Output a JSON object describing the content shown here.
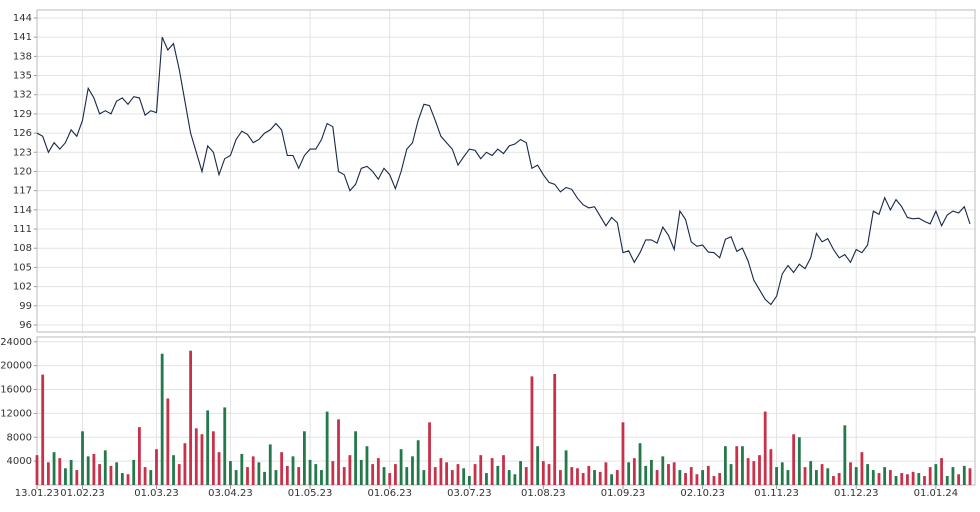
{
  "chart_data": [
    {
      "type": "line",
      "series": [
        {
          "color": "#17284a",
          "values": [
            126,
            125.5,
            123,
            124.5,
            123.5,
            124.5,
            126.5,
            125.5,
            128,
            133,
            131.5,
            129,
            129.5,
            129,
            131,
            131.5,
            130.5,
            131.7,
            131.5,
            128.8,
            129.5,
            129.2,
            141,
            139,
            140,
            136,
            131,
            126,
            123,
            120,
            124,
            123,
            119.5,
            122,
            122.5,
            125,
            126.3,
            125.8,
            124.5,
            125,
            126,
            126.5,
            127.5,
            126.5,
            122.5,
            122.5,
            120.5,
            122.5,
            123.5,
            123.5,
            125,
            127.5,
            127,
            120,
            119.5,
            117,
            118,
            120.5,
            120.8,
            120,
            118.8,
            120.5,
            119.5,
            117.3,
            120,
            123.5,
            124.5,
            128,
            130.5,
            130.3,
            128,
            125.5,
            124.5,
            123.5,
            121,
            122.3,
            123.5,
            123.3,
            122,
            123,
            122.5,
            123.5,
            122.8,
            124,
            124.3,
            125,
            124.5,
            120.5,
            121,
            119.5,
            118.3,
            118,
            116.8,
            117.5,
            117.2,
            115.8,
            114.8,
            114.3,
            114.5,
            113,
            111.5,
            112.8,
            112,
            107.3,
            107.6,
            105.8,
            107.3,
            109.3,
            109.3,
            108.8,
            111.3,
            110,
            107.8,
            113.8,
            112.5,
            109,
            108.3,
            108.5,
            107.4,
            107.3,
            106.5,
            109.4,
            109.8,
            107.5,
            108,
            106,
            103,
            101.5,
            100,
            99.2,
            100.5,
            104,
            105.3,
            104.2,
            105.5,
            104.8,
            106.5,
            110.3,
            109,
            109.5,
            107.8,
            106.5,
            107,
            105.8,
            107.8,
            107.3,
            108.5,
            113.8,
            113.3,
            115.9,
            114,
            115.6,
            114.5,
            112.8,
            112.6,
            112.7,
            112.2,
            111.8,
            113.8,
            111.5,
            113.2,
            113.8,
            113.5,
            114.5,
            111.8
          ]
        }
      ],
      "ylim": [
        94.9,
        145.25
      ],
      "yticks": [
        96,
        99,
        102,
        105,
        108,
        111,
        114,
        117,
        120,
        123,
        126,
        129,
        132,
        135,
        138,
        141,
        144
      ],
      "grid": true
    },
    {
      "type": "bar",
      "categories": [
        "13.01.23",
        null,
        null,
        null,
        null,
        null,
        null,
        null,
        "01.02.23",
        null,
        null,
        null,
        null,
        null,
        null,
        null,
        null,
        null,
        null,
        null,
        null,
        "01.03.23",
        null,
        null,
        null,
        null,
        null,
        null,
        null,
        null,
        null,
        null,
        null,
        null,
        "03.04.23",
        null,
        null,
        null,
        null,
        null,
        null,
        null,
        null,
        null,
        null,
        null,
        null,
        null,
        "01.05.23",
        null,
        null,
        null,
        null,
        null,
        null,
        null,
        null,
        null,
        null,
        null,
        null,
        null,
        "01.06.23",
        null,
        null,
        null,
        null,
        null,
        null,
        null,
        null,
        null,
        null,
        null,
        null,
        null,
        "03.07.23",
        null,
        null,
        null,
        null,
        null,
        null,
        null,
        null,
        null,
        null,
        null,
        null,
        "01.08.23",
        null,
        null,
        null,
        null,
        null,
        null,
        null,
        null,
        null,
        null,
        null,
        null,
        null,
        "01.09.23",
        null,
        null,
        null,
        null,
        null,
        null,
        null,
        null,
        null,
        null,
        null,
        null,
        null,
        "02.10.23",
        null,
        null,
        null,
        null,
        null,
        null,
        null,
        null,
        null,
        null,
        null,
        null,
        "01.11.23",
        null,
        null,
        null,
        null,
        null,
        null,
        null,
        null,
        null,
        null,
        null,
        null,
        null,
        "01.12.23",
        null,
        null,
        null,
        null,
        null,
        null,
        null,
        null,
        null,
        null,
        null,
        null,
        null,
        "01.01.24",
        null,
        null,
        null,
        null,
        null,
        null
      ],
      "values": [
        5000,
        18500,
        3800,
        5500,
        4500,
        2800,
        4200,
        2500,
        9000,
        4800,
        5200,
        3500,
        5800,
        3200,
        3800,
        2000,
        1800,
        4200,
        9700,
        3000,
        2500,
        6000,
        22000,
        14500,
        5000,
        3500,
        7000,
        22500,
        9500,
        8500,
        12500,
        9000,
        5500,
        13000,
        4000,
        2500,
        5200,
        3000,
        4800,
        3800,
        2200,
        6800,
        2500,
        5500,
        3200,
        4800,
        3000,
        9000,
        4200,
        3500,
        2500,
        12300,
        4000,
        11000,
        3000,
        5000,
        9000,
        4200,
        6500,
        3500,
        4500,
        3000,
        2000,
        3500,
        6000,
        3000,
        4800,
        7500,
        2500,
        10500,
        3000,
        4500,
        3800,
        2500,
        3500,
        2800,
        1500,
        3500,
        5000,
        2000,
        4500,
        3200,
        5000,
        2500,
        1800,
        4000,
        3000,
        18200,
        6500,
        4000,
        3500,
        18600,
        2500,
        5800,
        3000,
        2800,
        2000,
        3200,
        2500,
        2200,
        3800,
        1800,
        2500,
        10500,
        3800,
        4500,
        7000,
        3200,
        4200,
        2500,
        4800,
        3500,
        3800,
        2500,
        2000,
        3000,
        1800,
        2500,
        3200,
        1500,
        2000,
        6500,
        3500,
        6500,
        6500,
        4500,
        4000,
        5000,
        12300,
        6000,
        3000,
        3800,
        2500,
        8500,
        8000,
        3000,
        4000,
        2500,
        3500,
        2800,
        1500,
        2000,
        10000,
        3800,
        3000,
        5500,
        3500,
        2500,
        2000,
        3000,
        2500,
        1500,
        2000,
        1800,
        2200,
        2000,
        1500,
        3000,
        3500,
        4500,
        1500,
        3000,
        1800,
        3200,
        2800
      ],
      "up_color": "#23794a",
      "down_color": "#c8314a",
      "ylim": [
        0,
        24800
      ],
      "yticks": [
        4000,
        8000,
        12000,
        16000,
        20000,
        24000
      ],
      "grid": true
    }
  ]
}
